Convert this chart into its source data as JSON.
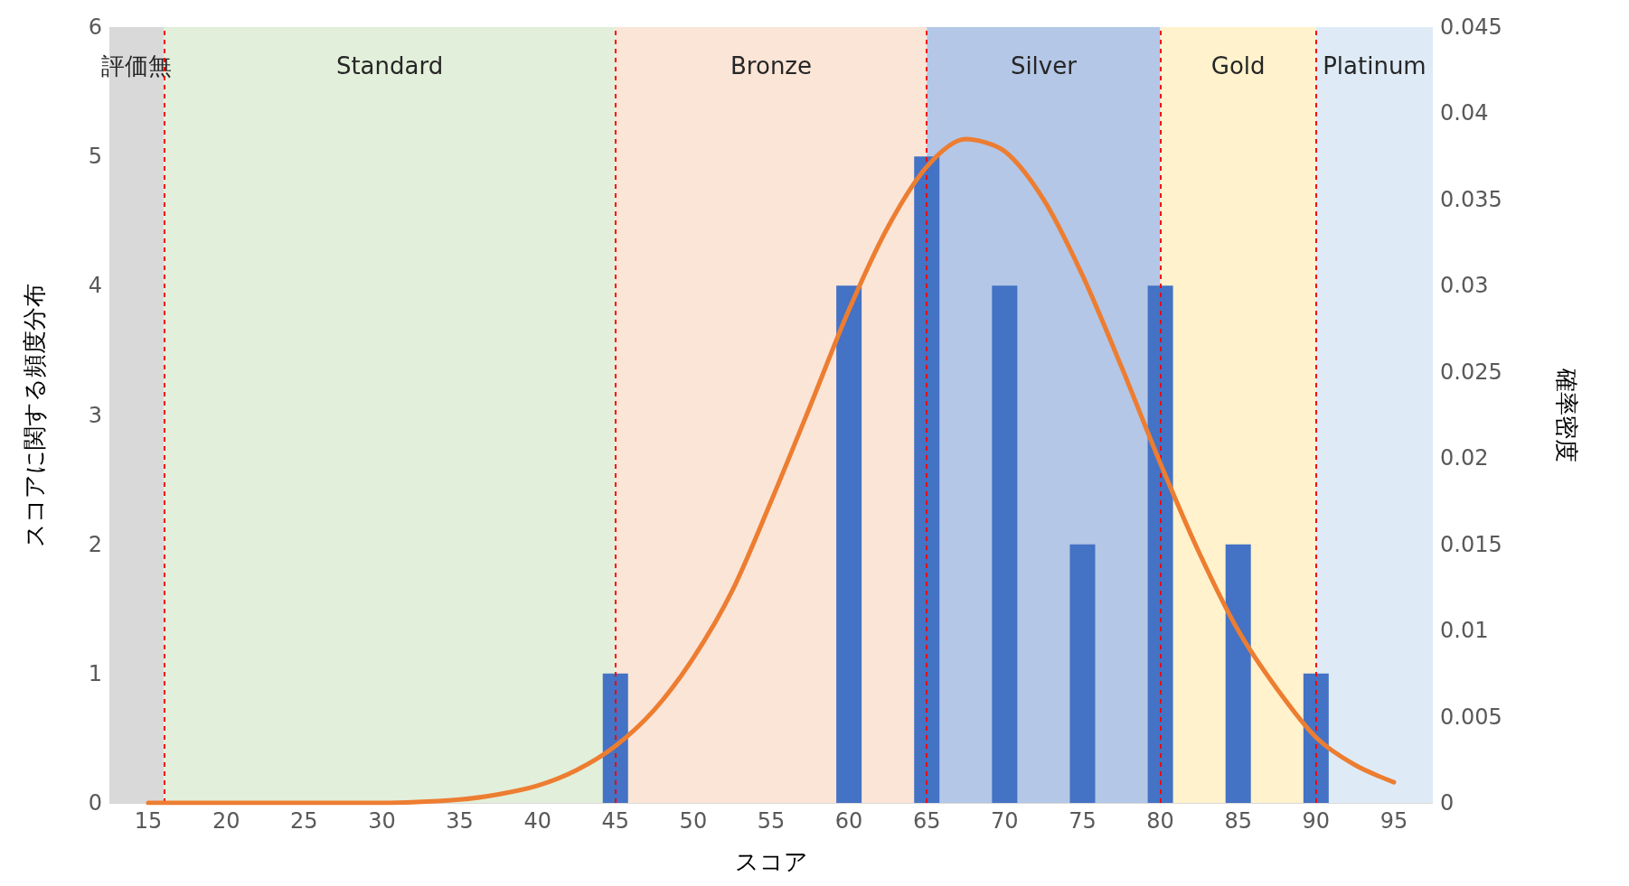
{
  "chart_data": {
    "type": "bar",
    "xlabel": "スコア",
    "ylabel": "スコアに関する頻度分布",
    "y2label": "確率密度",
    "xlim": [
      12.5,
      97.5
    ],
    "xticks": [
      15,
      20,
      25,
      30,
      35,
      40,
      45,
      50,
      55,
      60,
      65,
      70,
      75,
      80,
      85,
      90,
      95
    ],
    "ylim": [
      0,
      6
    ],
    "yticks": [
      0,
      1,
      2,
      3,
      4,
      5,
      6
    ],
    "y2lim": [
      0,
      0.045
    ],
    "y2ticks": [
      0,
      0.005,
      0.01,
      0.015,
      0.02,
      0.025,
      0.03,
      0.035,
      0.04,
      0.045
    ],
    "grid": "y",
    "series": [
      {
        "color": "#4472c4",
        "x": [
          45,
          60,
          65,
          70,
          75,
          80,
          85,
          90
        ],
        "values": [
          1,
          4,
          5,
          4,
          2,
          4,
          2,
          1
        ]
      },
      {
        "type": "line",
        "axis": "y2",
        "color": "#ed7d31",
        "marker": "none",
        "line_style": "solid",
        "x": [
          15,
          20,
          25,
          30,
          35,
          37.5,
          40,
          42.5,
          45,
          47.5,
          50,
          52.5,
          55,
          57.5,
          60,
          62.5,
          65,
          67.5,
          70,
          72.5,
          75,
          77.5,
          80,
          82.5,
          85,
          87.5,
          90,
          92.5,
          95
        ],
        "values": [
          0,
          0,
          0,
          0,
          0.0002,
          0.0005,
          0.001,
          0.0019,
          0.0033,
          0.0054,
          0.0084,
          0.0123,
          0.0175,
          0.023,
          0.0286,
          0.0334,
          0.0369,
          0.0385,
          0.0378,
          0.035,
          0.0306,
          0.0253,
          0.0197,
          0.0145,
          0.01,
          0.0066,
          0.0038,
          0.0022,
          0.0012
        ]
      }
    ],
    "bands": [
      {
        "axis": "x",
        "from": 12.5,
        "to": 16,
        "label": "評価無",
        "color": "#d9d9d9"
      },
      {
        "axis": "x",
        "from": 16,
        "to": 45,
        "label": "Standard",
        "color": "#e2efda"
      },
      {
        "axis": "x",
        "from": 45,
        "to": 65,
        "label": "Bronze",
        "color": "#fbe5d6"
      },
      {
        "axis": "x",
        "from": 65,
        "to": 80,
        "label": "Silver",
        "color": "#b4c7e7"
      },
      {
        "axis": "x",
        "from": 80,
        "to": 90,
        "label": "Gold",
        "color": "#fff2cc"
      },
      {
        "axis": "x",
        "from": 90,
        "to": 97.5,
        "label": "Platinum",
        "color": "#deebf7"
      }
    ],
    "ref_lines": [
      {
        "axis": "x",
        "value": 16,
        "color": "#ff0000",
        "line_style": "dashed"
      },
      {
        "axis": "x",
        "value": 45,
        "color": "#ff0000",
        "line_style": "dashed"
      },
      {
        "axis": "x",
        "value": 65,
        "color": "#ff0000",
        "line_style": "dashed"
      },
      {
        "axis": "x",
        "value": 80,
        "color": "#ff0000",
        "line_style": "dashed"
      },
      {
        "axis": "x",
        "value": 90,
        "color": "#ff0000",
        "line_style": "dashed"
      }
    ]
  }
}
